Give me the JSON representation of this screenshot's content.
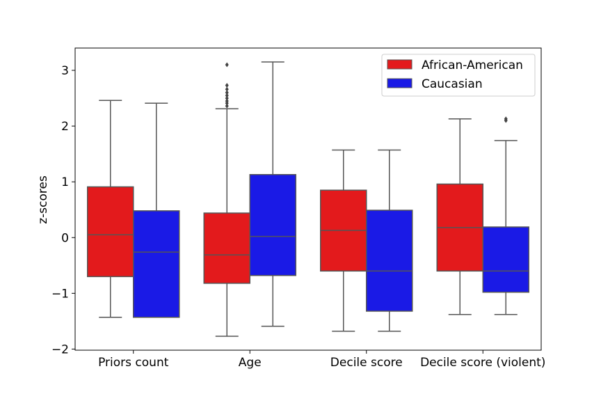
{
  "chart_data": {
    "type": "boxplot",
    "title": "",
    "xlabel": "",
    "ylabel": "z-scores",
    "ylim": [
      -2.02,
      3.4
    ],
    "yticks": [
      {
        "value": 3,
        "label": "3"
      },
      {
        "value": 2,
        "label": "2"
      },
      {
        "value": 1,
        "label": "1"
      },
      {
        "value": 0,
        "label": "0"
      },
      {
        "value": -1,
        "label": "−1"
      },
      {
        "value": -2,
        "label": "−2"
      }
    ],
    "categories": [
      "Priors count",
      "Age",
      "Decile score",
      "Decile score (violent)"
    ],
    "legend": {
      "position": "top-right",
      "entries": [
        {
          "name": "African-American",
          "color": "#e31a1c"
        },
        {
          "name": "Caucasian",
          "color": "#1a1ae6"
        }
      ]
    },
    "series": [
      {
        "name": "African-American",
        "color": "#e31a1c",
        "boxes": [
          {
            "whislo": -1.43,
            "q1": -0.7,
            "med": 0.05,
            "q3": 0.91,
            "whishi": 2.46,
            "fliers": []
          },
          {
            "whislo": -1.77,
            "q1": -0.82,
            "med": -0.31,
            "q3": 0.44,
            "whishi": 2.31,
            "fliers": [
              2.36,
              2.41,
              2.45,
              2.5,
              2.55,
              2.6,
              2.66,
              2.73,
              3.1
            ]
          },
          {
            "whislo": -1.68,
            "q1": -0.6,
            "med": 0.13,
            "q3": 0.85,
            "whishi": 1.57,
            "fliers": []
          },
          {
            "whislo": -1.38,
            "q1": -0.6,
            "med": 0.18,
            "q3": 0.96,
            "whishi": 2.13,
            "fliers": []
          }
        ]
      },
      {
        "name": "Caucasian",
        "color": "#1a1ae6",
        "boxes": [
          {
            "whislo": -1.43,
            "q1": -1.43,
            "med": -0.26,
            "q3": 0.48,
            "whishi": 2.41,
            "fliers": []
          },
          {
            "whislo": -1.59,
            "q1": -0.68,
            "med": 0.02,
            "q3": 1.13,
            "whishi": 3.15,
            "fliers": []
          },
          {
            "whislo": -1.68,
            "q1": -1.32,
            "med": -0.6,
            "q3": 0.49,
            "whishi": 1.57,
            "fliers": []
          },
          {
            "whislo": -1.38,
            "q1": -0.98,
            "med": -0.6,
            "q3": 0.19,
            "whishi": 1.74,
            "fliers": [
              2.1,
              2.13
            ]
          }
        ]
      }
    ]
  }
}
